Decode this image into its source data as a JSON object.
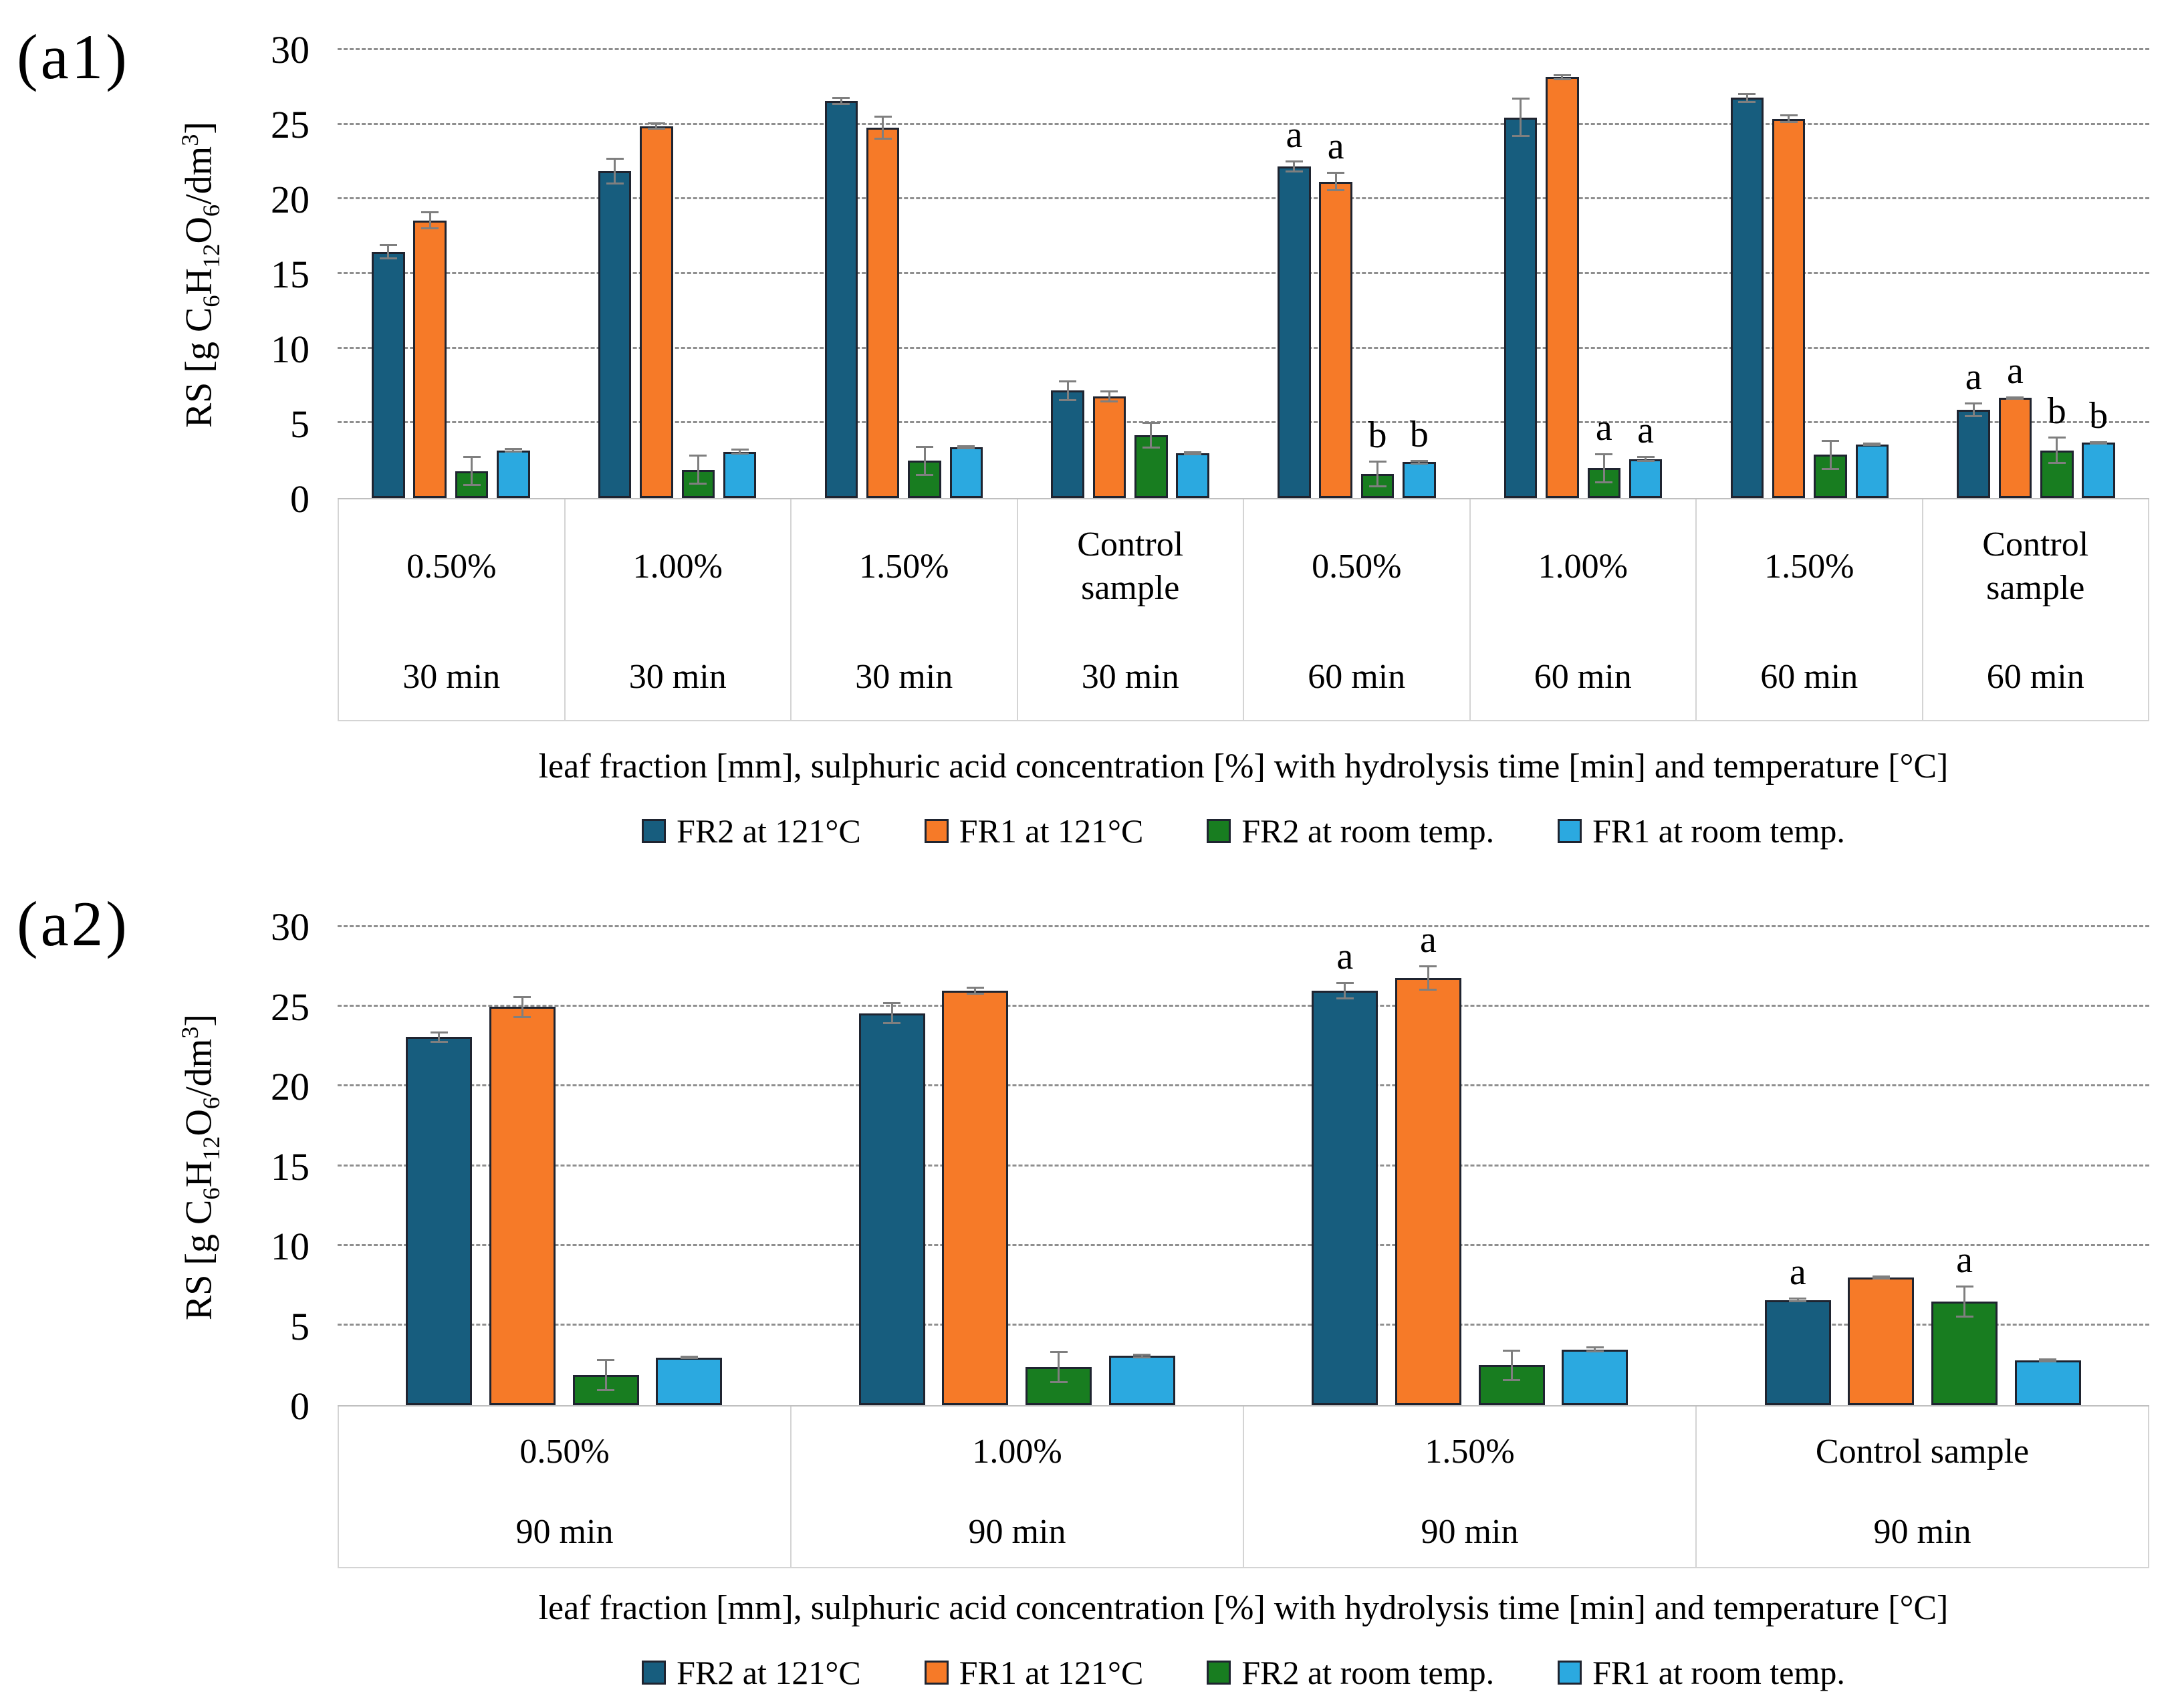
{
  "page": {
    "background": "#ffffff"
  },
  "colors": {
    "series": [
      "#175d7e",
      "#f67a28",
      "#187d20",
      "#2ba9e0"
    ],
    "bar_border": "#1f2430",
    "gridline": "#8f8f8f",
    "error_bar": "#7f7f7f",
    "table_border": "#d4d4d4",
    "text": "#000000"
  },
  "series_keys": [
    "fr2-121c",
    "fr1-121c",
    "fr2-room-temp",
    "fr1-room-temp"
  ],
  "chart_data": [
    {
      "id": "a1",
      "type": "bar",
      "panel_label": "(a1)",
      "ylabel_text": "RS [g C6H12O6/dm3]",
      "ylabel_parts": [
        {
          "t": "RS [g C"
        },
        {
          "t": "6",
          "sub": true
        },
        {
          "t": "H"
        },
        {
          "t": "12",
          "sub": true
        },
        {
          "t": "O"
        },
        {
          "t": "6",
          "sub": true
        },
        {
          "t": "/dm"
        },
        {
          "t": "3",
          "sup": true
        },
        {
          "t": "]"
        }
      ],
      "xlabel": "leaf fraction [mm], sulphuric acid concentration [%] with hydrolysis time [min] and temperature [°C]",
      "ylim": [
        0,
        30
      ],
      "yticks": [
        0,
        5,
        10,
        15,
        20,
        25,
        30
      ],
      "grid": true,
      "legend_position": "bottom",
      "legend": [
        "FR2 at 121°C",
        "FR1 at 121°C",
        "FR2 at room temp.",
        "FR1 at room temp."
      ],
      "series_names": [
        "FR2 at 121°C",
        "FR1 at 121°C",
        "FR2 at room temp.",
        "FR1 at room temp."
      ],
      "groups": [
        {
          "concentration": "0.50%",
          "time": "30 min",
          "values": [
            16.5,
            18.6,
            1.8,
            3.2
          ],
          "errors": [
            0.5,
            0.6,
            1.0,
            0.15
          ],
          "letters": [
            "",
            "",
            "",
            ""
          ]
        },
        {
          "concentration": "1.00%",
          "time": "30 min",
          "values": [
            21.9,
            24.9,
            1.9,
            3.1
          ],
          "errors": [
            0.9,
            0.25,
            1.0,
            0.2
          ],
          "letters": [
            "",
            "",
            "",
            ""
          ]
        },
        {
          "concentration": "1.50%",
          "time": "30 min",
          "values": [
            26.6,
            24.8,
            2.5,
            3.4
          ],
          "errors": [
            0.25,
            0.8,
            1.0,
            0.15
          ],
          "letters": [
            "",
            "",
            "",
            ""
          ]
        },
        {
          "concentration": "Control sample",
          "time": "30 min",
          "values": [
            7.2,
            6.8,
            4.2,
            3.0
          ],
          "errors": [
            0.7,
            0.4,
            0.9,
            0.15
          ],
          "letters": [
            "",
            "",
            "",
            ""
          ]
        },
        {
          "concentration": "0.50%",
          "time": "60 min",
          "values": [
            22.2,
            21.2,
            1.6,
            2.4
          ],
          "errors": [
            0.4,
            0.65,
            0.9,
            0.15
          ],
          "letters": [
            "a",
            "a",
            "b",
            "b"
          ]
        },
        {
          "concentration": "1.00%",
          "time": "60 min",
          "values": [
            25.5,
            28.2,
            2.0,
            2.6
          ],
          "errors": [
            1.3,
            0.2,
            1.0,
            0.2
          ],
          "letters": [
            "",
            "",
            "a",
            "a"
          ]
        },
        {
          "concentration": "1.50%",
          "time": "60 min",
          "values": [
            26.8,
            25.4,
            2.9,
            3.6
          ],
          "errors": [
            0.35,
            0.3,
            1.0,
            0.12
          ],
          "letters": [
            "",
            "",
            "",
            ""
          ]
        },
        {
          "concentration": "Control sample",
          "time": "60 min",
          "values": [
            5.9,
            6.7,
            3.2,
            3.7
          ],
          "errors": [
            0.5,
            0.12,
            0.9,
            0.12
          ],
          "letters": [
            "a",
            "a",
            "b",
            "b"
          ]
        }
      ]
    },
    {
      "id": "a2",
      "type": "bar",
      "panel_label": "(a2)",
      "ylabel_text": "RS [g C6H12O6/dm3]",
      "ylabel_parts": [
        {
          "t": "RS [g C"
        },
        {
          "t": "6",
          "sub": true
        },
        {
          "t": "H"
        },
        {
          "t": "12",
          "sub": true
        },
        {
          "t": "O"
        },
        {
          "t": "6",
          "sub": true
        },
        {
          "t": "/dm"
        },
        {
          "t": "3",
          "sup": true
        },
        {
          "t": "]"
        }
      ],
      "xlabel": "leaf fraction [mm], sulphuric acid concentration [%] with hydrolysis time [min] and temperature [°C]",
      "ylim": [
        0,
        30
      ],
      "yticks": [
        0,
        5,
        10,
        15,
        20,
        25,
        30
      ],
      "grid": true,
      "legend_position": "bottom",
      "legend": [
        "FR2 at 121°C",
        "FR1 at 121°C",
        "FR2 at room temp.",
        "FR1 at room temp."
      ],
      "series_names": [
        "FR2 at 121°C",
        "FR1 at 121°C",
        "FR2 at room temp.",
        "FR1 at room temp."
      ],
      "groups": [
        {
          "concentration": "0.50%",
          "time": "90 min",
          "values": [
            23.1,
            25.0,
            1.9,
            3.0
          ],
          "errors": [
            0.35,
            0.7,
            1.0,
            0.12
          ],
          "letters": [
            "",
            "",
            "",
            ""
          ]
        },
        {
          "concentration": "1.00%",
          "time": "90 min",
          "values": [
            24.6,
            26.0,
            2.4,
            3.1
          ],
          "errors": [
            0.7,
            0.25,
            1.0,
            0.15
          ],
          "letters": [
            "",
            "",
            "",
            ""
          ]
        },
        {
          "concentration": "1.50%",
          "time": "90 min",
          "values": [
            26.0,
            26.8,
            2.5,
            3.5
          ],
          "errors": [
            0.55,
            0.8,
            1.0,
            0.2
          ],
          "letters": [
            "a",
            "a",
            "",
            ""
          ]
        },
        {
          "concentration": "Control sample",
          "time": "90 min",
          "values": [
            6.6,
            8.0,
            6.5,
            2.8
          ],
          "errors": [
            0.15,
            0.12,
            1.0,
            0.12
          ],
          "letters": [
            "a",
            "",
            "a",
            ""
          ]
        }
      ]
    }
  ]
}
